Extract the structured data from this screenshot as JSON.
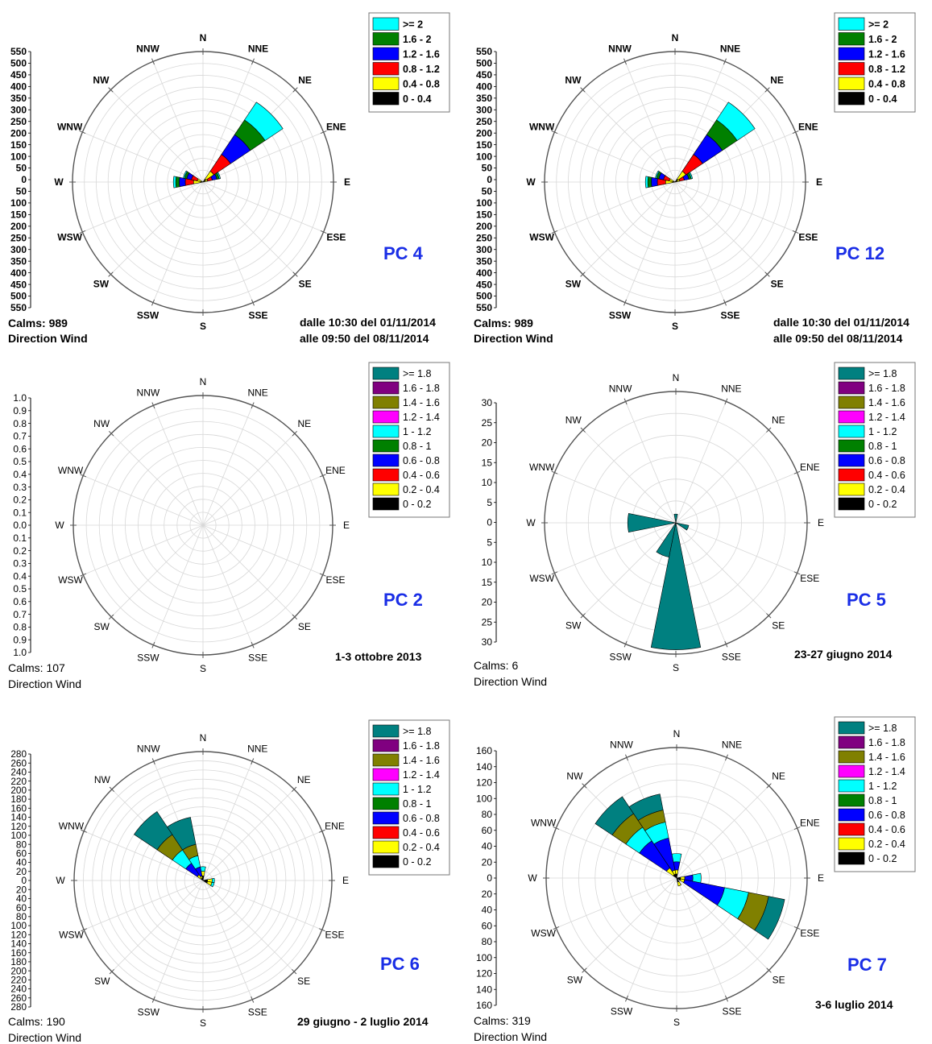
{
  "directions": [
    "N",
    "NNE",
    "NE",
    "ENE",
    "E",
    "ESE",
    "SE",
    "SSE",
    "S",
    "SSW",
    "SW",
    "WSW",
    "W",
    "WNW",
    "NW",
    "NNW"
  ],
  "chart_data": [
    {
      "type": "wind-rose",
      "id": "pc4",
      "label": "PC 4",
      "calms": "Calms: 989",
      "subtitle": "Direction Wind",
      "period": [
        "dalle 10:30 del 01/11/2014",
        "alle 09:50 del 08/11/2014"
      ],
      "axis_ticks": [
        "550",
        "500",
        "450",
        "400",
        "350",
        "300",
        "250",
        "200",
        "150",
        "100",
        "50",
        "0"
      ],
      "axis_max": 550,
      "rings": 11,
      "bold_labels": true,
      "legend": [
        {
          "label": ">= 2",
          "color": "#00ffff"
        },
        {
          "label": "1.6 - 2",
          "color": "#008000"
        },
        {
          "label": "1.2 - 1.6",
          "color": "#0000ff"
        },
        {
          "label": "0.8 - 1.2",
          "color": "#ff0000"
        },
        {
          "label": "0.4 - 0.8",
          "color": "#ffff00"
        },
        {
          "label": "0 - 0.4",
          "color": "#000000"
        }
      ],
      "petals": [
        {
          "dir": "NE",
          "values": [
            15,
            40,
            85,
            100,
            75,
            90
          ]
        },
        {
          "dir": "ENE",
          "values": [
            5,
            15,
            20,
            20,
            10,
            5
          ]
        },
        {
          "dir": "W",
          "values": [
            10,
            30,
            35,
            25,
            15,
            10
          ]
        },
        {
          "dir": "WNW",
          "values": [
            5,
            20,
            25,
            20,
            10,
            5
          ]
        }
      ]
    },
    {
      "type": "wind-rose",
      "id": "pc12",
      "label": "PC 12",
      "calms": "Calms: 989",
      "subtitle": "Direction Wind",
      "period": [
        "dalle 10:30 del 01/11/2014",
        "alle 09:50 del 08/11/2014"
      ],
      "axis_ticks": [
        "550",
        "500",
        "450",
        "400",
        "350",
        "300",
        "250",
        "200",
        "150",
        "100",
        "50",
        "0"
      ],
      "axis_max": 550,
      "rings": 11,
      "bold_labels": true,
      "legend": [
        {
          "label": ">= 2",
          "color": "#00ffff"
        },
        {
          "label": "1.6 - 2",
          "color": "#008000"
        },
        {
          "label": "1.2 - 1.6",
          "color": "#0000ff"
        },
        {
          "label": "0.8 - 1.2",
          "color": "#ff0000"
        },
        {
          "label": "0.4 - 0.8",
          "color": "#ffff00"
        },
        {
          "label": "0 - 0.4",
          "color": "#000000"
        }
      ],
      "petals": [
        {
          "dir": "NE",
          "values": [
            15,
            40,
            85,
            100,
            75,
            90
          ]
        },
        {
          "dir": "ENE",
          "values": [
            5,
            15,
            20,
            20,
            10,
            5
          ]
        },
        {
          "dir": "W",
          "values": [
            10,
            30,
            35,
            25,
            15,
            10
          ]
        },
        {
          "dir": "WNW",
          "values": [
            5,
            20,
            25,
            20,
            10,
            5
          ]
        }
      ]
    },
    {
      "type": "wind-rose",
      "id": "pc2",
      "label": "PC 2",
      "calms": "Calms: 107",
      "subtitle": "Direction Wind",
      "period": [
        "1-3 ottobre 2013"
      ],
      "axis_ticks": [
        "1.0",
        "0.9",
        "0.8",
        "0.7",
        "0.6",
        "0.5",
        "0.4",
        "0.3",
        "0.2",
        "0.1",
        "0.0"
      ],
      "axis_max": 1.0,
      "rings": 10,
      "bold_labels": false,
      "legend": [
        {
          "label": ">= 1.8",
          "color": "#008080"
        },
        {
          "label": "1.6 - 1.8",
          "color": "#800080"
        },
        {
          "label": "1.4 - 1.6",
          "color": "#808000"
        },
        {
          "label": "1.2 - 1.4",
          "color": "#ff00ff"
        },
        {
          "label": "1 - 1.2",
          "color": "#00ffff"
        },
        {
          "label": "0.8 - 1",
          "color": "#008000"
        },
        {
          "label": "0.6 - 0.8",
          "color": "#0000ff"
        },
        {
          "label": "0.4 - 0.6",
          "color": "#ff0000"
        },
        {
          "label": "0.2 - 0.4",
          "color": "#ffff00"
        },
        {
          "label": "0 - 0.2",
          "color": "#000000"
        }
      ],
      "petals": []
    },
    {
      "type": "wind-rose",
      "id": "pc5",
      "label": "PC 5",
      "calms": "Calms: 6",
      "subtitle": "Direction Wind",
      "period": [
        "23-27 giugno 2014"
      ],
      "axis_ticks": [
        "30",
        "25",
        "20",
        "15",
        "10",
        "5",
        "0"
      ],
      "axis_max": 30,
      "rings": 6,
      "bold_labels": false,
      "legend": [
        {
          "label": ">= 1.8",
          "color": "#008080"
        },
        {
          "label": "1.6 - 1.8",
          "color": "#800080"
        },
        {
          "label": "1.4 - 1.6",
          "color": "#808000"
        },
        {
          "label": "1.2 - 1.4",
          "color": "#ff00ff"
        },
        {
          "label": "1 - 1.2",
          "color": "#00ffff"
        },
        {
          "label": "0.8 - 1",
          "color": "#008000"
        },
        {
          "label": "0.6 - 0.8",
          "color": "#0000ff"
        },
        {
          "label": "0.4 - 0.6",
          "color": "#ff0000"
        },
        {
          "label": "0.2 - 0.4",
          "color": "#ffff00"
        },
        {
          "label": "0 - 0.2",
          "color": "#000000"
        }
      ],
      "petals": [
        {
          "dir": "S",
          "values": [
            0,
            0,
            0,
            0,
            0,
            0,
            0,
            0,
            0,
            29
          ]
        },
        {
          "dir": "W",
          "values": [
            0,
            0,
            0,
            0,
            0,
            0,
            0,
            0,
            0,
            11
          ]
        },
        {
          "dir": "SSW",
          "values": [
            0,
            0,
            0,
            0,
            0,
            0,
            0,
            0,
            0,
            8
          ]
        },
        {
          "dir": "ESE",
          "values": [
            0,
            0,
            0,
            0,
            0,
            0,
            0,
            0,
            0,
            3
          ]
        },
        {
          "dir": "N",
          "values": [
            0,
            0,
            0,
            0,
            0,
            0,
            0,
            0,
            0,
            2
          ]
        }
      ]
    },
    {
      "type": "wind-rose",
      "id": "pc6",
      "label": "PC 6",
      "calms": "Calms: 190",
      "subtitle": "Direction Wind",
      "period": [
        "29 giugno - 2 luglio 2014"
      ],
      "axis_ticks": [
        "280",
        "260",
        "240",
        "220",
        "200",
        "180",
        "160",
        "140",
        "120",
        "100",
        "80",
        "60",
        "40",
        "20",
        "0"
      ],
      "axis_max": 280,
      "rings": 14,
      "bold_labels": false,
      "legend": [
        {
          "label": ">= 1.8",
          "color": "#008080"
        },
        {
          "label": "1.6 - 1.8",
          "color": "#800080"
        },
        {
          "label": "1.4 - 1.6",
          "color": "#808000"
        },
        {
          "label": "1.2 - 1.4",
          "color": "#ff00ff"
        },
        {
          "label": "1 - 1.2",
          "color": "#00ffff"
        },
        {
          "label": "0.8 - 1",
          "color": "#008000"
        },
        {
          "label": "0.6 - 0.8",
          "color": "#0000ff"
        },
        {
          "label": "0.4 - 0.6",
          "color": "#ff0000"
        },
        {
          "label": "0.2 - 0.4",
          "color": "#ffff00"
        },
        {
          "label": "0 - 0.2",
          "color": "#000000"
        }
      ],
      "petals": [
        {
          "dir": "NW",
          "values": [
            5,
            10,
            0,
            30,
            0,
            35,
            0,
            40,
            0,
            60
          ]
        },
        {
          "dir": "NNW",
          "values": [
            5,
            5,
            0,
            20,
            0,
            25,
            0,
            25,
            0,
            60
          ]
        },
        {
          "dir": "N",
          "values": [
            10,
            10,
            0,
            0,
            0,
            10,
            0,
            0,
            0,
            0
          ]
        },
        {
          "dir": "ESE",
          "values": [
            10,
            10,
            0,
            0,
            0,
            5,
            0,
            0,
            0,
            0
          ]
        },
        {
          "dir": "E",
          "values": [
            10,
            10,
            0,
            0,
            0,
            5,
            0,
            0,
            0,
            0
          ]
        }
      ]
    },
    {
      "type": "wind-rose",
      "id": "pc7",
      "label": "PC 7",
      "calms": "Calms: 319",
      "subtitle": "Direction Wind",
      "period": [
        "3-6 luglio 2014"
      ],
      "axis_ticks": [
        "160",
        "140",
        "120",
        "100",
        "80",
        "60",
        "40",
        "20",
        "0"
      ],
      "axis_max": 160,
      "rings": 8,
      "bold_labels": false,
      "legend": [
        {
          "label": ">= 1.8",
          "color": "#008080"
        },
        {
          "label": "1.6 - 1.8",
          "color": "#800080"
        },
        {
          "label": "1.4 - 1.6",
          "color": "#808000"
        },
        {
          "label": "1.2 - 1.4",
          "color": "#ff00ff"
        },
        {
          "label": "1 - 1.2",
          "color": "#00ffff"
        },
        {
          "label": "0.8 - 1",
          "color": "#008000"
        },
        {
          "label": "0.6 - 0.8",
          "color": "#0000ff"
        },
        {
          "label": "0.4 - 0.6",
          "color": "#ff0000"
        },
        {
          "label": "0.2 - 0.4",
          "color": "#ffff00"
        },
        {
          "label": "0 - 0.2",
          "color": "#000000"
        }
      ],
      "petals": [
        {
          "dir": "NW",
          "values": [
            5,
            10,
            0,
            40,
            0,
            20,
            0,
            20,
            0,
            25
          ]
        },
        {
          "dir": "NNW",
          "values": [
            5,
            5,
            0,
            40,
            0,
            20,
            0,
            15,
            0,
            20
          ]
        },
        {
          "dir": "ESE",
          "values": [
            5,
            5,
            0,
            50,
            0,
            30,
            0,
            25,
            0,
            20
          ]
        },
        {
          "dir": "E",
          "values": [
            5,
            5,
            0,
            10,
            0,
            10,
            0,
            0,
            0,
            0
          ]
        },
        {
          "dir": "N",
          "values": [
            5,
            5,
            0,
            10,
            0,
            10,
            0,
            0,
            0,
            0
          ]
        },
        {
          "dir": "SSE",
          "values": [
            5,
            5,
            0,
            0,
            0,
            0,
            0,
            0,
            0,
            0
          ]
        }
      ]
    }
  ]
}
